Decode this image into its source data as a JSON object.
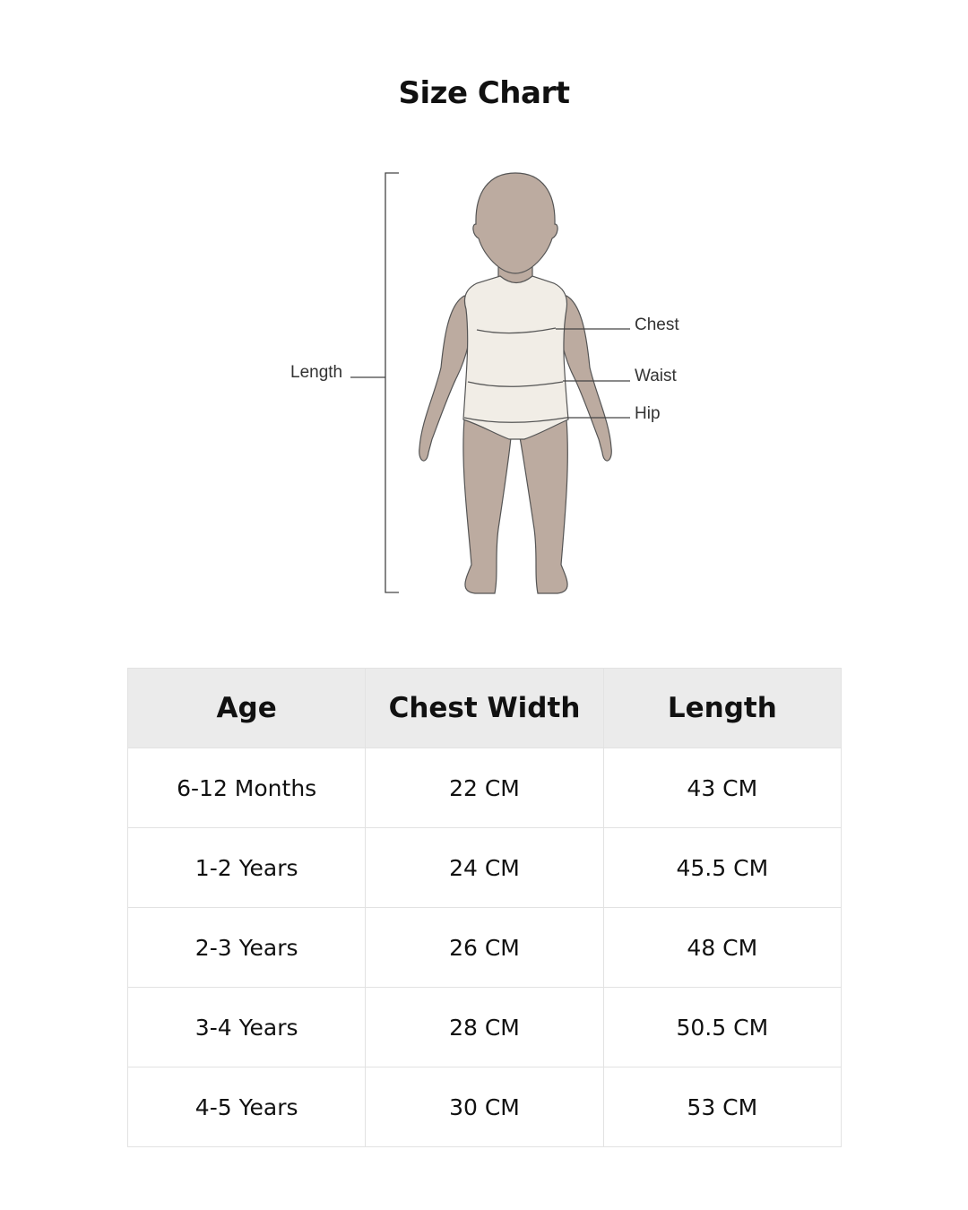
{
  "title": "Size Chart",
  "diagram": {
    "labels": {
      "length": "Length",
      "chest": "Chest",
      "waist": "Waist",
      "hip": "Hip"
    },
    "colors": {
      "skin": "#bcaba0",
      "garment": "#f1ede6",
      "outline": "#444444"
    }
  },
  "table": {
    "headers": [
      "Age",
      "Chest Width",
      "Length"
    ],
    "rows": [
      [
        "6-12 Months",
        "22 CM",
        "43 CM"
      ],
      [
        "1-2 Years",
        "24 CM",
        "45.5 CM"
      ],
      [
        "2-3 Years",
        "26 CM",
        "48 CM"
      ],
      [
        "3-4 Years",
        "28 CM",
        "50.5 CM"
      ],
      [
        "4-5 Years",
        "30 CM",
        "53 CM"
      ]
    ]
  }
}
